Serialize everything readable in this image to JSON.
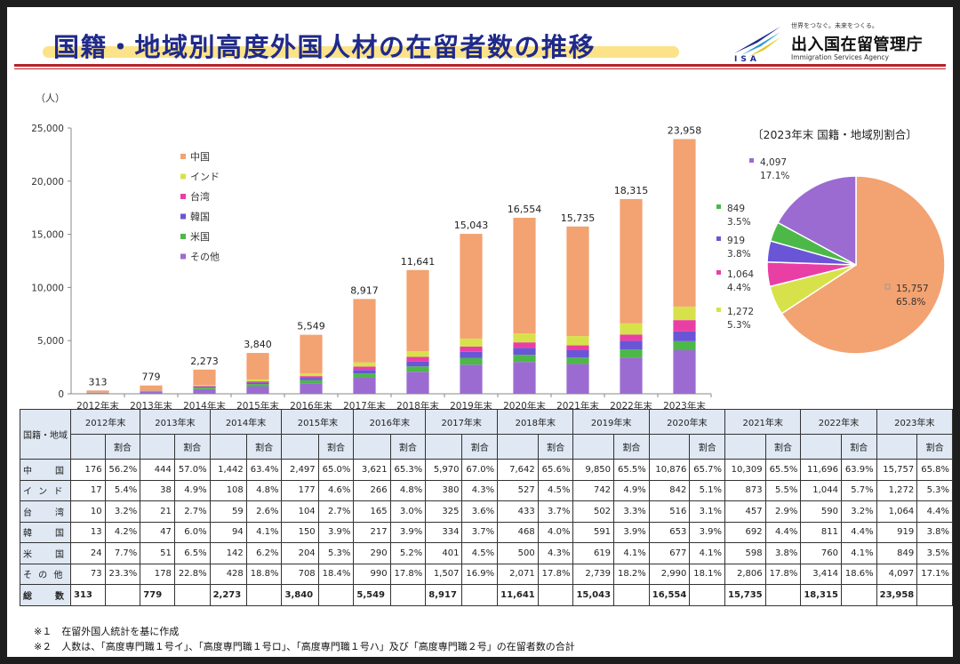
{
  "header": {
    "title": "国籍・地域別高度外国人材の在留者数の推移"
  },
  "logo": {
    "tagline": "世界をつなぐ。未来をつくる。",
    "name": "出入国在留管理庁",
    "english": "Immigration Services Agency",
    "abbr": "ISA"
  },
  "chart_data": [
    {
      "type": "bar",
      "stacked": true,
      "ylabel": "（人）",
      "ylim": [
        0,
        25000
      ],
      "yticks": [
        "0",
        "5,000",
        "10,000",
        "15,000",
        "20,000",
        "25,000"
      ],
      "categories": [
        "2012年末",
        "2013年末",
        "2014年末",
        "2015年末",
        "2016年末",
        "2017年末",
        "2018年末",
        "2019年末",
        "2020年末",
        "2021年末",
        "2022年末",
        "2023年末"
      ],
      "series": [
        {
          "name": "その他",
          "color": "#9b6bd1",
          "values": [
            73,
            178,
            428,
            708,
            990,
            1507,
            2071,
            2739,
            2990,
            2806,
            3414,
            4097
          ]
        },
        {
          "name": "米国",
          "color": "#4cb848",
          "values": [
            24,
            51,
            142,
            204,
            290,
            401,
            500,
            619,
            677,
            598,
            760,
            849
          ]
        },
        {
          "name": "韓国",
          "color": "#6a55d6",
          "values": [
            13,
            47,
            94,
            150,
            217,
            334,
            468,
            591,
            653,
            692,
            811,
            919
          ]
        },
        {
          "name": "台湾",
          "color": "#e93fa5",
          "values": [
            10,
            21,
            59,
            104,
            165,
            325,
            433,
            502,
            516,
            457,
            590,
            1064
          ]
        },
        {
          "name": "インド",
          "color": "#d7e24a",
          "values": [
            17,
            38,
            108,
            177,
            266,
            380,
            527,
            742,
            842,
            873,
            1044,
            1272
          ]
        },
        {
          "name": "中国",
          "color": "#f3a271",
          "values": [
            176,
            444,
            1442,
            2497,
            3621,
            5970,
            7642,
            9850,
            10876,
            10309,
            11696,
            15757
          ]
        }
      ],
      "totals": [
        "313",
        "779",
        "2,273",
        "3,840",
        "5,549",
        "8,917",
        "11,641",
        "15,043",
        "16,554",
        "15,735",
        "18,315",
        "23,958"
      ],
      "legend": [
        "中国",
        "インド",
        "台湾",
        "韓国",
        "米国",
        "その他"
      ]
    },
    {
      "type": "pie",
      "title": "〔2023年末 国籍・地域別割合〕",
      "slices": [
        {
          "name": "中国",
          "value": 15757,
          "label": "15,757",
          "pct": "65.8%",
          "color": "#f3a271"
        },
        {
          "name": "インド",
          "value": 1272,
          "label": "1,272",
          "pct": "5.3%",
          "color": "#d7e24a"
        },
        {
          "name": "台湾",
          "value": 1064,
          "label": "1,064",
          "pct": "4.4%",
          "color": "#e93fa5"
        },
        {
          "name": "韓国",
          "value": 919,
          "label": "919",
          "pct": "3.8%",
          "color": "#6a55d6"
        },
        {
          "name": "米国",
          "value": 849,
          "label": "849",
          "pct": "3.5%",
          "color": "#4cb848"
        },
        {
          "name": "その他",
          "value": 4097,
          "label": "4,097",
          "pct": "17.1%",
          "color": "#9b6bd1"
        }
      ]
    }
  ],
  "table": {
    "corner": "国籍・地域",
    "years": [
      "2012年末",
      "2013年末",
      "2014年末",
      "2015年末",
      "2016年末",
      "2017年末",
      "2018年末",
      "2019年末",
      "2020年末",
      "2021年末",
      "2022年末",
      "2023年末"
    ],
    "share_label": "割合",
    "rows": [
      {
        "label": "中　　国",
        "cells": [
          [
            "176",
            "56.2%"
          ],
          [
            "444",
            "57.0%"
          ],
          [
            "1,442",
            "63.4%"
          ],
          [
            "2,497",
            "65.0%"
          ],
          [
            "3,621",
            "65.3%"
          ],
          [
            "5,970",
            "67.0%"
          ],
          [
            "7,642",
            "65.6%"
          ],
          [
            "9,850",
            "65.5%"
          ],
          [
            "10,876",
            "65.7%"
          ],
          [
            "10,309",
            "65.5%"
          ],
          [
            "11,696",
            "63.9%"
          ],
          [
            "15,757",
            "65.8%"
          ]
        ]
      },
      {
        "label": "イ ン ド",
        "cells": [
          [
            "17",
            "5.4%"
          ],
          [
            "38",
            "4.9%"
          ],
          [
            "108",
            "4.8%"
          ],
          [
            "177",
            "4.6%"
          ],
          [
            "266",
            "4.8%"
          ],
          [
            "380",
            "4.3%"
          ],
          [
            "527",
            "4.5%"
          ],
          [
            "742",
            "4.9%"
          ],
          [
            "842",
            "5.1%"
          ],
          [
            "873",
            "5.5%"
          ],
          [
            "1,044",
            "5.7%"
          ],
          [
            "1,272",
            "5.3%"
          ]
        ]
      },
      {
        "label": "台　　湾",
        "cells": [
          [
            "10",
            "3.2%"
          ],
          [
            "21",
            "2.7%"
          ],
          [
            "59",
            "2.6%"
          ],
          [
            "104",
            "2.7%"
          ],
          [
            "165",
            "3.0%"
          ],
          [
            "325",
            "3.6%"
          ],
          [
            "433",
            "3.7%"
          ],
          [
            "502",
            "3.3%"
          ],
          [
            "516",
            "3.1%"
          ],
          [
            "457",
            "2.9%"
          ],
          [
            "590",
            "3.2%"
          ],
          [
            "1,064",
            "4.4%"
          ]
        ]
      },
      {
        "label": "韓　　国",
        "cells": [
          [
            "13",
            "4.2%"
          ],
          [
            "47",
            "6.0%"
          ],
          [
            "94",
            "4.1%"
          ],
          [
            "150",
            "3.9%"
          ],
          [
            "217",
            "3.9%"
          ],
          [
            "334",
            "3.7%"
          ],
          [
            "468",
            "4.0%"
          ],
          [
            "591",
            "3.9%"
          ],
          [
            "653",
            "3.9%"
          ],
          [
            "692",
            "4.4%"
          ],
          [
            "811",
            "4.4%"
          ],
          [
            "919",
            "3.8%"
          ]
        ]
      },
      {
        "label": "米　　国",
        "cells": [
          [
            "24",
            "7.7%"
          ],
          [
            "51",
            "6.5%"
          ],
          [
            "142",
            "6.2%"
          ],
          [
            "204",
            "5.3%"
          ],
          [
            "290",
            "5.2%"
          ],
          [
            "401",
            "4.5%"
          ],
          [
            "500",
            "4.3%"
          ],
          [
            "619",
            "4.1%"
          ],
          [
            "677",
            "4.1%"
          ],
          [
            "598",
            "3.8%"
          ],
          [
            "760",
            "4.1%"
          ],
          [
            "849",
            "3.5%"
          ]
        ]
      },
      {
        "label": "そ の 他",
        "cells": [
          [
            "73",
            "23.3%"
          ],
          [
            "178",
            "22.8%"
          ],
          [
            "428",
            "18.8%"
          ],
          [
            "708",
            "18.4%"
          ],
          [
            "990",
            "17.8%"
          ],
          [
            "1,507",
            "16.9%"
          ],
          [
            "2,071",
            "17.8%"
          ],
          [
            "2,739",
            "18.2%"
          ],
          [
            "2,990",
            "18.1%"
          ],
          [
            "2,806",
            "17.8%"
          ],
          [
            "3,414",
            "18.6%"
          ],
          [
            "4,097",
            "17.1%"
          ]
        ]
      }
    ],
    "total_label": "総　　数",
    "totals": [
      "313",
      "779",
      "2,273",
      "3,840",
      "5,549",
      "8,917",
      "11,641",
      "15,043",
      "16,554",
      "15,735",
      "18,315",
      "23,958"
    ]
  },
  "notes": [
    "※１　在留外国人統計を基に作成",
    "※２　人数は、「高度専門職１号イ」、「高度専門職１号ロ」、「高度専門職１号ハ」及び「高度専門職２号」の在留者数の合計"
  ]
}
